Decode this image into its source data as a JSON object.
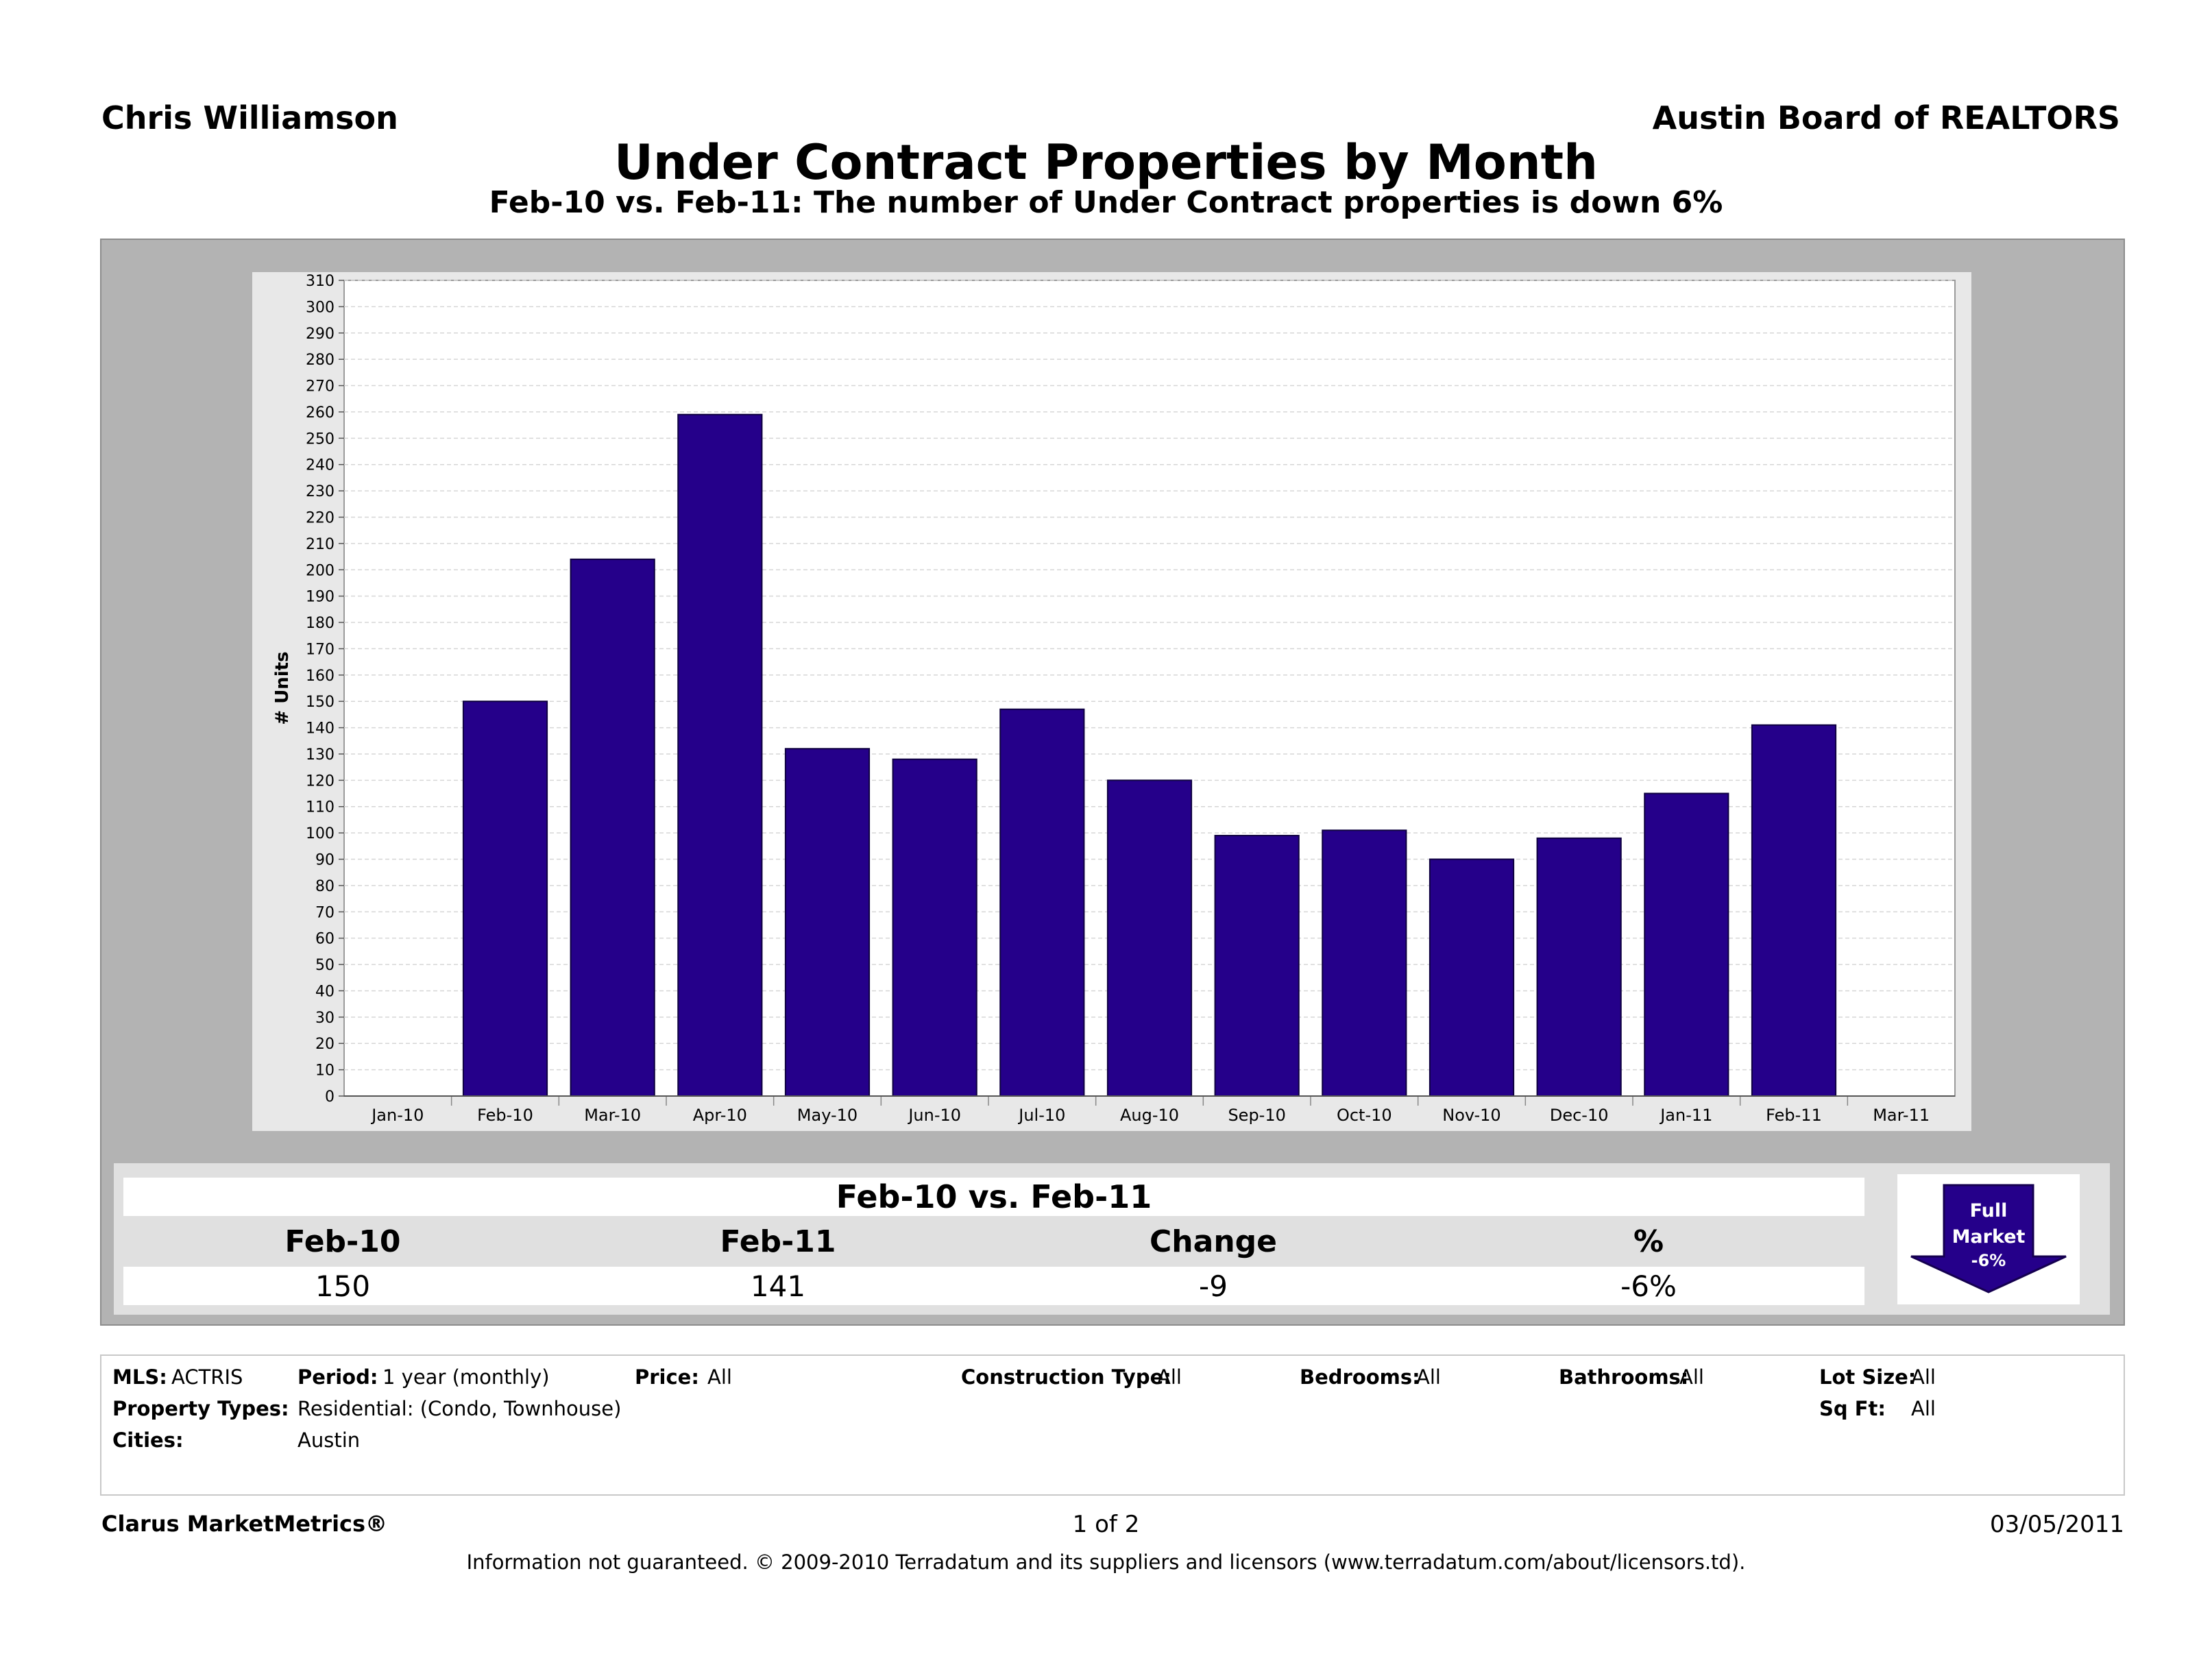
{
  "header": {
    "agent_name": "Chris Williamson",
    "board_name": "Austin Board of REALTORS"
  },
  "chart_data": {
    "type": "bar",
    "title": "Under Contract Properties by Month",
    "subtitle": "Feb-10 vs. Feb-11: The number of Under Contract properties is down 6%",
    "ylabel": "# Units",
    "xlabel": "",
    "ylim": [
      0,
      310
    ],
    "ytick_step": 10,
    "grid": true,
    "categories": [
      "Jan-10",
      "Feb-10",
      "Mar-10",
      "Apr-10",
      "May-10",
      "Jun-10",
      "Jul-10",
      "Aug-10",
      "Sep-10",
      "Oct-10",
      "Nov-10",
      "Dec-10",
      "Jan-11",
      "Feb-11",
      "Mar-11"
    ],
    "values": [
      null,
      150,
      204,
      259,
      132,
      128,
      147,
      120,
      99,
      101,
      90,
      98,
      115,
      141,
      null
    ],
    "bar_color": "#25008a"
  },
  "comparison": {
    "title": "Feb-10 vs. Feb-11",
    "headers": [
      "Feb-10",
      "Feb-11",
      "Change",
      "%"
    ],
    "values": [
      "150",
      "141",
      "-9",
      "-6%"
    ],
    "badge": {
      "line1": "Full",
      "line2": "Market",
      "line3": "-6%"
    }
  },
  "filters": {
    "mls_label": "MLS:",
    "mls_value": "ACTRIS",
    "period_label": "Period:",
    "period_value": "1 year (monthly)",
    "price_label": "Price:",
    "price_value": "All",
    "construction_label": "Construction Type:",
    "construction_value": "All",
    "bedrooms_label": "Bedrooms:",
    "bedrooms_value": "All",
    "bathrooms_label": "Bathrooms:",
    "bathrooms_value": "All",
    "lot_label": "Lot Size:",
    "lot_value": "All",
    "types_label": "Property Types:",
    "types_value": "Residential: (Condo, Townhouse)",
    "sqft_label": "Sq Ft:",
    "sqft_value": "All",
    "cities_label": "Cities:",
    "cities_value": "Austin"
  },
  "footer": {
    "brand": "Clarus MarketMetrics®",
    "page": "1 of 2",
    "date": "03/05/2011",
    "disclaimer": "Information not guaranteed.  © 2009-2010 Terradatum and its suppliers and licensors (www.terradatum.com/about/licensors.td)."
  }
}
